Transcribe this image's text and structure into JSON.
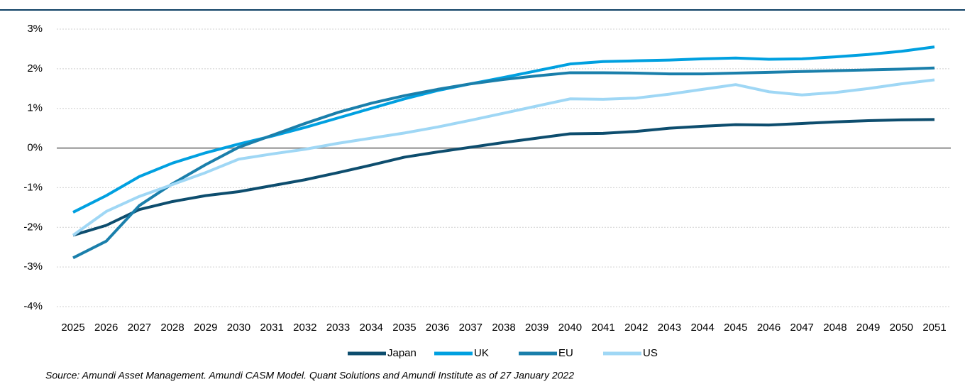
{
  "chart_data": {
    "type": "line",
    "categories": [
      "2025",
      "2026",
      "2027",
      "2028",
      "2029",
      "2030",
      "2031",
      "2032",
      "2033",
      "2034",
      "2035",
      "2036",
      "2037",
      "2038",
      "2039",
      "2040",
      "2041",
      "2042",
      "2043",
      "2044",
      "2045",
      "2046",
      "2047",
      "2048",
      "2049",
      "2050",
      "2051"
    ],
    "series": [
      {
        "name": "Japan",
        "color": "#0d4d6e",
        "values": [
          -2.2,
          -1.95,
          -1.55,
          -1.35,
          -1.2,
          -1.1,
          -0.95,
          -0.8,
          -0.62,
          -0.43,
          -0.23,
          -0.1,
          0.02,
          0.14,
          0.25,
          0.36,
          0.37,
          0.42,
          0.5,
          0.55,
          0.59,
          0.58,
          0.62,
          0.66,
          0.69,
          0.71,
          0.72
        ]
      },
      {
        "name": "UK",
        "color": "#00a0e0",
        "values": [
          -1.62,
          -1.2,
          -0.72,
          -0.38,
          -0.12,
          0.1,
          0.3,
          0.52,
          0.76,
          1.0,
          1.24,
          1.45,
          1.62,
          1.78,
          1.95,
          2.12,
          2.18,
          2.2,
          2.22,
          2.25,
          2.27,
          2.24,
          2.25,
          2.3,
          2.36,
          2.44,
          2.55
        ]
      },
      {
        "name": "EU",
        "color": "#1a7fab",
        "values": [
          -2.77,
          -2.35,
          -1.45,
          -0.9,
          -0.42,
          0.02,
          0.32,
          0.62,
          0.9,
          1.13,
          1.32,
          1.48,
          1.62,
          1.73,
          1.82,
          1.9,
          1.9,
          1.89,
          1.87,
          1.87,
          1.89,
          1.91,
          1.93,
          1.95,
          1.97,
          1.99,
          2.02
        ]
      },
      {
        "name": "US",
        "color": "#9fd7f5",
        "values": [
          -2.2,
          -1.6,
          -1.22,
          -0.92,
          -0.62,
          -0.28,
          -0.15,
          -0.03,
          0.12,
          0.25,
          0.38,
          0.53,
          0.7,
          0.88,
          1.06,
          1.24,
          1.23,
          1.26,
          1.36,
          1.48,
          1.6,
          1.42,
          1.34,
          1.4,
          1.5,
          1.62,
          1.72
        ]
      }
    ],
    "ylim": [
      -4,
      3
    ],
    "yticks": [
      {
        "value": -4,
        "label": "-4%"
      },
      {
        "value": -3,
        "label": "-3%"
      },
      {
        "value": -2,
        "label": "-2%"
      },
      {
        "value": -1,
        "label": "-1%"
      },
      {
        "value": 0,
        "label": "0%"
      },
      {
        "value": 1,
        "label": "1%"
      },
      {
        "value": 2,
        "label": "2%"
      },
      {
        "value": 3,
        "label": "3%"
      }
    ],
    "grid": true,
    "legend": "bottom",
    "source": "Source: Amundi Asset Management. Amundi CASM Model. Quant Solutions and Amundi Institute as of 27 January 2022"
  }
}
